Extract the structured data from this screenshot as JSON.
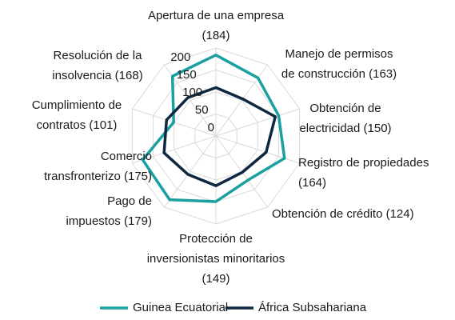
{
  "chart_data": {
    "type": "radar",
    "categories": [
      [
        "Apertura de una empresa",
        "(184)"
      ],
      [
        "Manejo de permisos",
        "de construcción (163)"
      ],
      [
        "Obtención de",
        "electricidad (150)"
      ],
      [
        "Registro de propiedades",
        "(164)"
      ],
      [
        "Obtención de crédito (124)"
      ],
      [
        "Protección de",
        "inversionistas minoritarios",
        "(149)"
      ],
      [
        "Pago de",
        "impuestos (179)"
      ],
      [
        "Comercio",
        "transfronterizo (175)"
      ],
      [
        "Cumplimiento de",
        "contratos (101)"
      ],
      [
        "Resolución de la",
        "insolvencia (168)"
      ]
    ],
    "series": [
      {
        "name": "Guinea Ecuatorial",
        "color": "#1aa0a0",
        "values": [
          184,
          163,
          150,
          164,
          124,
          149,
          179,
          175,
          101,
          168
        ]
      },
      {
        "name": "África Subsahariana",
        "color": "#0e2841",
        "values": [
          110,
          104,
          142,
          120,
          102,
          113,
          108,
          124,
          118,
          108
        ]
      }
    ],
    "ylim": [
      0,
      200
    ],
    "yticks": [
      0,
      50,
      100,
      150,
      200
    ],
    "grid": true
  }
}
